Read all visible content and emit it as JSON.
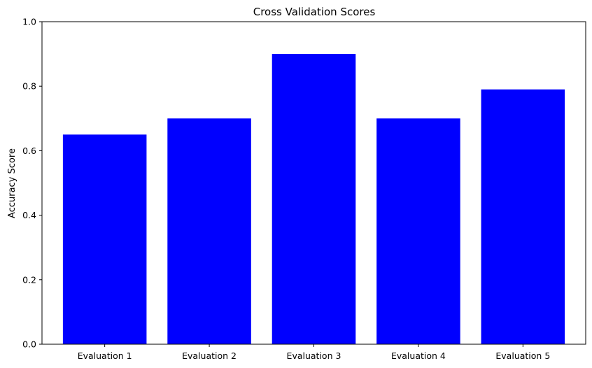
{
  "chart_data": {
    "type": "bar",
    "title": "Cross Validation Scores",
    "xlabel": "",
    "ylabel": "Accuracy Score",
    "categories": [
      "Evaluation 1",
      "Evaluation 2",
      "Evaluation 3",
      "Evaluation 4",
      "Evaluation 5"
    ],
    "values": [
      0.65,
      0.7,
      0.9,
      0.7,
      0.79
    ],
    "ylim": [
      0,
      1.0
    ],
    "yticks": [
      "0.0",
      "0.2",
      "0.4",
      "0.6",
      "0.8",
      "1.0"
    ],
    "bar_color": "#0000ff",
    "grid": false
  }
}
